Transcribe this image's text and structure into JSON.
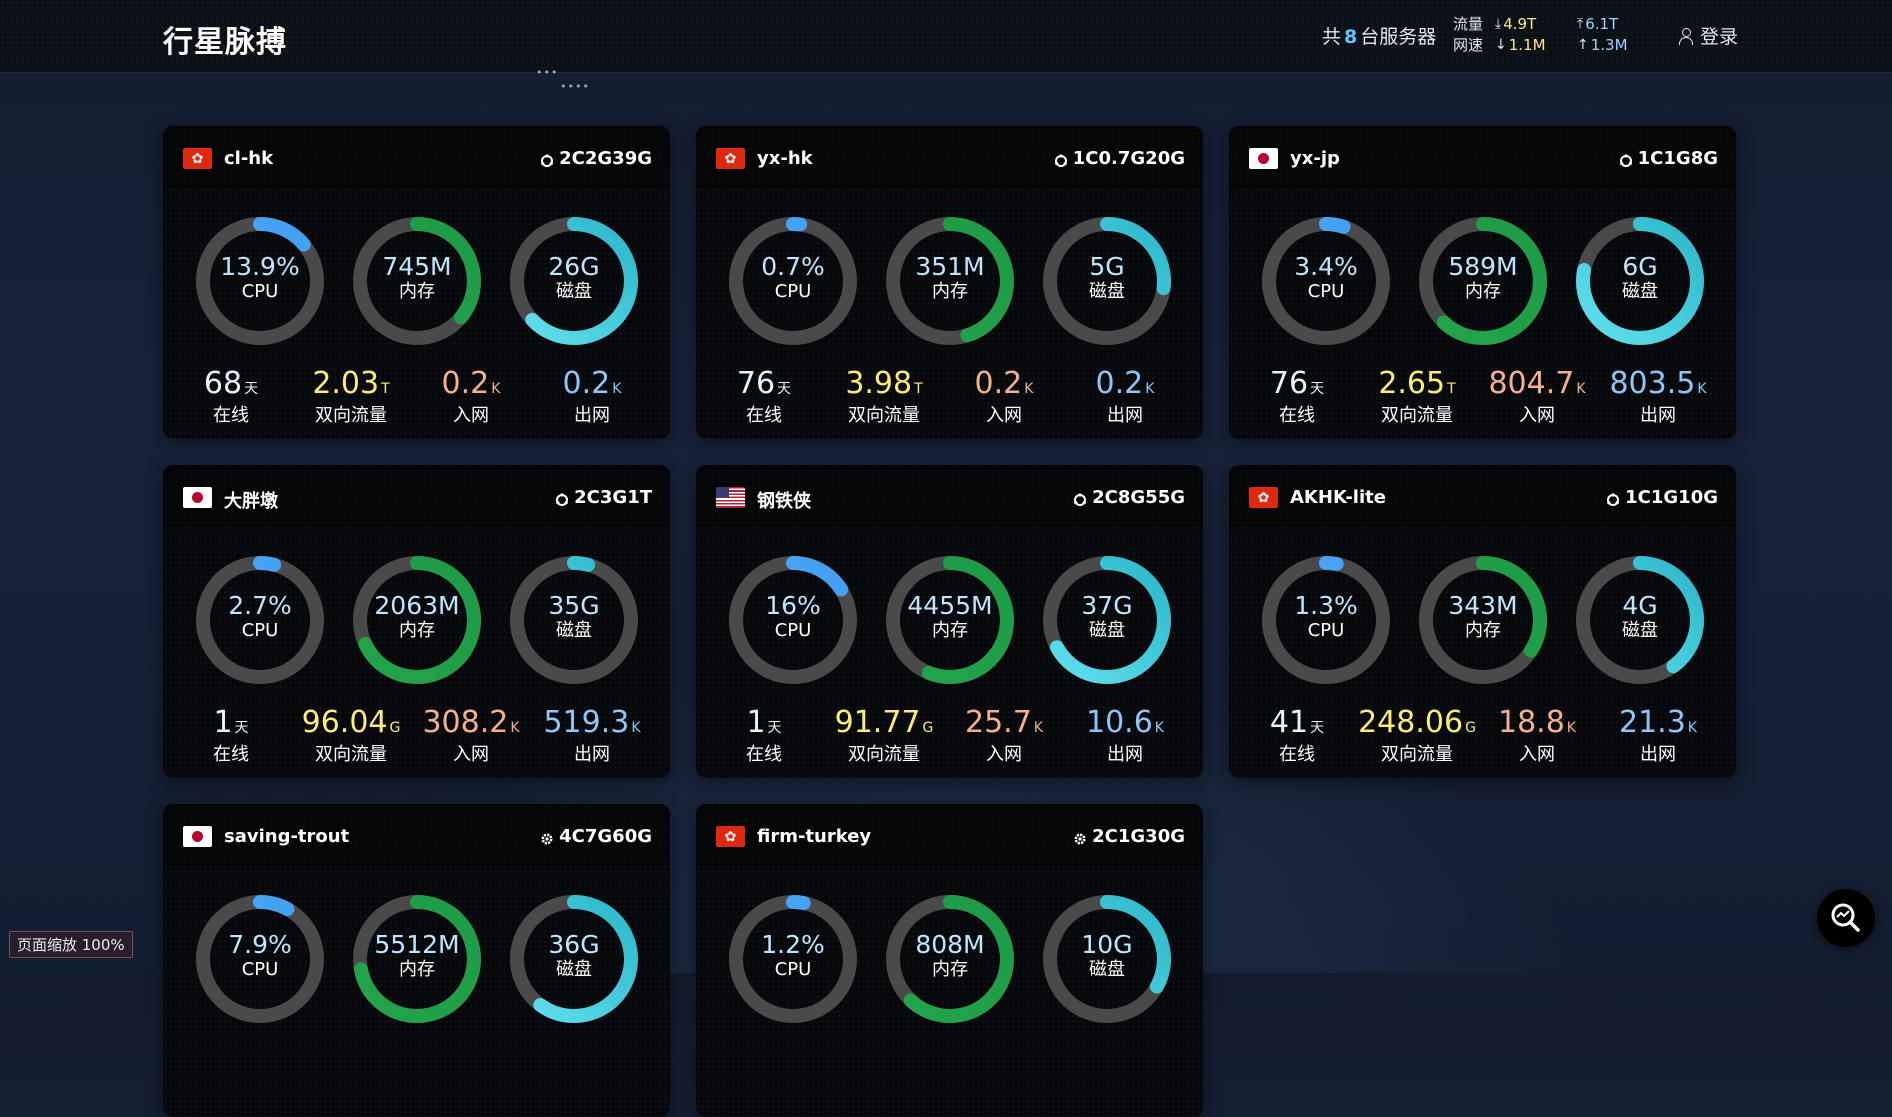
{
  "header": {
    "brand": "行星脉搏",
    "server_count_prefix": "共",
    "server_count": "8",
    "server_count_suffix": "台服务器",
    "traffic_label": "流量",
    "speed_label": "网速",
    "traffic_down": "4.9T",
    "traffic_up": "6.1T",
    "speed_down": "1.1M",
    "speed_up": "1.3M",
    "login_label": "登录",
    "deco_dots_1": "•••",
    "deco_dots_2": "••••"
  },
  "colors": {
    "cpu_ring": "#3f9cf0",
    "mem_ring": "#1e9a46",
    "disk_ring": "#2bb7c9",
    "ring_track": "#4a4a4a"
  },
  "labels": {
    "cpu": "CPU",
    "mem": "内存",
    "disk": "磁盘",
    "online": "在线",
    "traffic": "双向流量",
    "in": "入网",
    "out": "出网"
  },
  "servers": [
    {
      "flag": "hk",
      "name": "cl-hk",
      "os_icon": "linux-icon",
      "spec": "2C2G39G",
      "cpu": "13.9%",
      "cpu_pct": 0.139,
      "mem": "745M",
      "mem_pct": 0.36,
      "disk": "26G",
      "disk_pct": 0.63,
      "online": "68",
      "online_unit": "天",
      "traffic": "2.03",
      "traffic_unit": "T",
      "in": "0.2",
      "in_unit": "K",
      "out": "0.2",
      "out_unit": "K"
    },
    {
      "flag": "hk",
      "name": "yx-hk",
      "os_icon": "linux-icon",
      "spec": "1C0.7G20G",
      "cpu": "0.7%",
      "cpu_pct": 0.02,
      "mem": "351M",
      "mem_pct": 0.45,
      "disk": "5G",
      "disk_pct": 0.27,
      "online": "76",
      "online_unit": "天",
      "traffic": "3.98",
      "traffic_unit": "T",
      "in": "0.2",
      "in_unit": "K",
      "out": "0.2",
      "out_unit": "K"
    },
    {
      "flag": "jp",
      "name": "yx-jp",
      "os_icon": "linux-icon",
      "spec": "1C1G8G",
      "cpu": "3.4%",
      "cpu_pct": 0.05,
      "mem": "589M",
      "mem_pct": 0.62,
      "disk": "6G",
      "disk_pct": 0.78,
      "online": "76",
      "online_unit": "天",
      "traffic": "2.65",
      "traffic_unit": "T",
      "in": "804.7",
      "in_unit": "K",
      "out": "803.5",
      "out_unit": "K"
    },
    {
      "flag": "jp",
      "name": "大胖墩",
      "os_icon": "linux-icon",
      "spec": "2C3G1T",
      "cpu": "2.7%",
      "cpu_pct": 0.04,
      "mem": "2063M",
      "mem_pct": 0.68,
      "disk": "35G",
      "disk_pct": 0.04,
      "online": "1",
      "online_unit": "天",
      "traffic": "96.04",
      "traffic_unit": "G",
      "in": "308.2",
      "in_unit": "K",
      "out": "519.3",
      "out_unit": "K"
    },
    {
      "flag": "us",
      "name": "钢铁侠",
      "os_icon": "linux-icon",
      "spec": "2C8G55G",
      "cpu": "16%",
      "cpu_pct": 0.16,
      "mem": "4455M",
      "mem_pct": 0.56,
      "disk": "37G",
      "disk_pct": 0.67,
      "online": "1",
      "online_unit": "天",
      "traffic": "91.77",
      "traffic_unit": "G",
      "in": "25.7",
      "in_unit": "K",
      "out": "10.6",
      "out_unit": "K"
    },
    {
      "flag": "hk",
      "name": "AKHK-lite",
      "os_icon": "linux-icon",
      "spec": "1C1G10G",
      "cpu": "1.3%",
      "cpu_pct": 0.03,
      "mem": "343M",
      "mem_pct": 0.34,
      "disk": "4G",
      "disk_pct": 0.4,
      "online": "41",
      "online_unit": "天",
      "traffic": "248.06",
      "traffic_unit": "G",
      "in": "18.8",
      "in_unit": "K",
      "out": "21.3",
      "out_unit": "K"
    },
    {
      "flag": "jp",
      "name": "saving-trout",
      "os_icon": "gear-icon",
      "spec": "4C7G60G",
      "cpu": "7.9%",
      "cpu_pct": 0.08,
      "mem": "5512M",
      "mem_pct": 0.72,
      "disk": "36G",
      "disk_pct": 0.6,
      "online": "",
      "online_unit": "",
      "traffic": "",
      "traffic_unit": "",
      "in": "",
      "in_unit": "",
      "out": "",
      "out_unit": ""
    },
    {
      "flag": "hk",
      "name": "firm-turkey",
      "os_icon": "gear-icon",
      "spec": "2C1G30G",
      "cpu": "1.2%",
      "cpu_pct": 0.03,
      "mem": "808M",
      "mem_pct": 0.62,
      "disk": "10G",
      "disk_pct": 0.33,
      "online": "",
      "online_unit": "",
      "traffic": "",
      "traffic_unit": "",
      "in": "",
      "in_unit": "",
      "out": "",
      "out_unit": ""
    }
  ],
  "zoom_label": "页面缩放 100%"
}
